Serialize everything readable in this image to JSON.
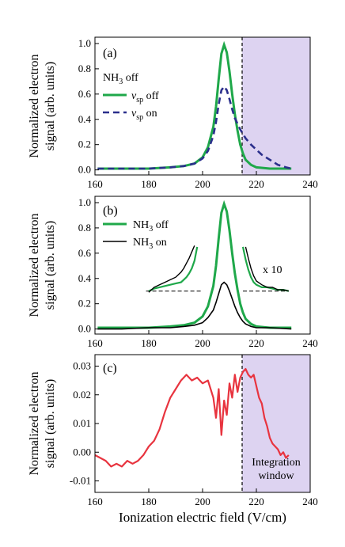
{
  "figure": {
    "xlabel": "Ionization electric field (V/cm)"
  },
  "colors": {
    "green": "#1fa84a",
    "navy": "#2b2f8c",
    "black": "#000000",
    "red": "#e8343f",
    "window": "#ddd3f1"
  },
  "chart_data": [
    {
      "type": "line",
      "panel_label": "(a)",
      "ylabel": "Normalized electron signal (arb. units)",
      "xlim": [
        160,
        240
      ],
      "ylim": [
        -0.04,
        1.05
      ],
      "x_ticks": [
        160,
        180,
        200,
        220,
        240
      ],
      "y_ticks": [
        0.0,
        0.2,
        0.4,
        0.6,
        0.8,
        1.0
      ],
      "legend_title": "NH3 off",
      "legend_position": "left",
      "vline": 215,
      "shaded_window": [
        215,
        240
      ],
      "series": [
        {
          "name": "νsp off",
          "style": "solid",
          "x": [
            161,
            170,
            180,
            188,
            193,
            197,
            200,
            202,
            204,
            205,
            206,
            207,
            208,
            209,
            210,
            211,
            212,
            213,
            214,
            215,
            216,
            218,
            220,
            225,
            233
          ],
          "y": [
            0.01,
            0.01,
            0.01,
            0.02,
            0.03,
            0.05,
            0.1,
            0.18,
            0.34,
            0.5,
            0.72,
            0.92,
            0.99,
            0.93,
            0.78,
            0.6,
            0.44,
            0.31,
            0.2,
            0.13,
            0.08,
            0.04,
            0.02,
            0.01,
            0.01
          ]
        },
        {
          "name": "νsp on",
          "style": "dashed",
          "x": [
            161,
            170,
            180,
            188,
            193,
            197,
            200,
            202,
            204,
            205,
            206,
            207,
            208,
            209,
            210,
            211,
            212,
            214,
            216,
            218,
            220,
            222,
            225,
            228,
            231,
            233
          ],
          "y": [
            0.01,
            0.01,
            0.01,
            0.02,
            0.03,
            0.05,
            0.09,
            0.15,
            0.27,
            0.38,
            0.52,
            0.63,
            0.66,
            0.63,
            0.56,
            0.48,
            0.41,
            0.32,
            0.25,
            0.2,
            0.16,
            0.12,
            0.08,
            0.04,
            0.02,
            0.01
          ]
        }
      ]
    },
    {
      "type": "line",
      "panel_label": "(b)",
      "ylabel": "Normalized electron signal (arb. units)",
      "xlim": [
        160,
        240
      ],
      "ylim": [
        -0.04,
        1.05
      ],
      "x_ticks": [
        160,
        180,
        200,
        220,
        240
      ],
      "y_ticks": [
        0.0,
        0.2,
        0.4,
        0.6,
        0.8,
        1.0
      ],
      "legend_position": "top-left",
      "annotation": "x 10",
      "baseline_dash": {
        "y": 0.3,
        "x_segments": [
          [
            179,
            200
          ],
          [
            215,
            232
          ]
        ]
      },
      "series": [
        {
          "name": "NH3 off",
          "color_key": "green",
          "x": [
            161,
            170,
            180,
            188,
            193,
            197,
            200,
            202,
            204,
            205,
            206,
            207,
            208,
            209,
            210,
            211,
            212,
            213,
            214,
            215,
            216,
            218,
            220,
            225,
            233
          ],
          "y": [
            0.01,
            0.01,
            0.01,
            0.02,
            0.03,
            0.05,
            0.1,
            0.18,
            0.34,
            0.5,
            0.72,
            0.92,
            0.99,
            0.93,
            0.78,
            0.6,
            0.44,
            0.31,
            0.2,
            0.13,
            0.08,
            0.04,
            0.02,
            0.01,
            0.01
          ]
        },
        {
          "name": "NH3 on",
          "color_key": "black",
          "x": [
            161,
            170,
            180,
            188,
            193,
            197,
            200,
            202,
            204,
            205,
            206,
            207,
            208,
            209,
            210,
            211,
            212,
            213,
            214,
            215,
            216,
            218,
            220,
            225,
            233
          ],
          "y": [
            0.0,
            0.0,
            0.01,
            0.01,
            0.02,
            0.03,
            0.05,
            0.09,
            0.15,
            0.21,
            0.28,
            0.35,
            0.37,
            0.35,
            0.3,
            0.24,
            0.18,
            0.13,
            0.09,
            0.06,
            0.04,
            0.02,
            0.01,
            0.01,
            0.0
          ]
        },
        {
          "name": "NH3 off x10 left",
          "color_key": "green",
          "x": [
            180,
            182,
            184,
            186,
            188,
            190,
            192,
            193,
            194,
            195,
            196,
            197,
            198
          ],
          "y": [
            0.3,
            0.32,
            0.33,
            0.34,
            0.35,
            0.36,
            0.37,
            0.39,
            0.41,
            0.44,
            0.48,
            0.54,
            0.65
          ]
        },
        {
          "name": "NH3 on x10 left",
          "color_key": "black",
          "x": [
            180,
            182,
            184,
            186,
            188,
            190,
            191,
            192,
            193,
            194,
            195,
            196,
            197
          ],
          "y": [
            0.29,
            0.33,
            0.35,
            0.37,
            0.39,
            0.41,
            0.43,
            0.45,
            0.48,
            0.52,
            0.56,
            0.61,
            0.66
          ]
        },
        {
          "name": "NH3 off x10 right",
          "color_key": "green",
          "x": [
            215,
            216,
            217,
            218,
            219,
            220,
            222,
            224,
            226,
            228,
            230,
            232
          ],
          "y": [
            0.65,
            0.55,
            0.47,
            0.41,
            0.37,
            0.35,
            0.33,
            0.33,
            0.32,
            0.31,
            0.31,
            0.3
          ]
        },
        {
          "name": "NH3 on x10 right",
          "color_key": "black",
          "x": [
            216,
            217,
            218,
            219,
            220,
            222,
            224,
            226,
            228,
            230,
            232
          ],
          "y": [
            0.65,
            0.56,
            0.48,
            0.42,
            0.38,
            0.35,
            0.33,
            0.33,
            0.31,
            0.31,
            0.3
          ]
        }
      ]
    },
    {
      "type": "line",
      "panel_label": "(c)",
      "ylabel": "Normalized electron signal (arb. units)",
      "xlim": [
        160,
        240
      ],
      "ylim": [
        -0.014,
        0.034
      ],
      "x_ticks": [
        160,
        180,
        200,
        220,
        240
      ],
      "y_ticks": [
        -0.01,
        0.0,
        0.01,
        0.02,
        0.03
      ],
      "vline": 215,
      "shaded_window": [
        215,
        240
      ],
      "window_label": [
        "Integration",
        "window"
      ],
      "series": [
        {
          "name": "difference",
          "color_key": "red",
          "x": [
            160,
            162,
            164,
            166,
            168,
            170,
            172,
            174,
            176,
            178,
            180,
            182,
            184,
            186,
            188,
            190,
            192,
            194,
            196,
            198,
            200,
            202,
            203,
            204,
            205,
            206,
            207,
            208,
            209,
            210,
            211,
            212,
            213,
            214,
            215,
            216,
            217,
            218,
            219,
            220,
            221,
            222,
            223,
            224,
            225,
            226,
            227,
            228,
            229,
            230,
            231,
            232
          ],
          "y": [
            -0.001,
            -0.002,
            -0.003,
            -0.005,
            -0.004,
            -0.005,
            -0.003,
            -0.004,
            -0.003,
            -0.001,
            0.002,
            0.004,
            0.008,
            0.014,
            0.019,
            0.022,
            0.025,
            0.027,
            0.025,
            0.026,
            0.024,
            0.025,
            0.022,
            0.019,
            0.012,
            0.022,
            0.006,
            0.018,
            0.013,
            0.024,
            0.019,
            0.027,
            0.021,
            0.026,
            0.028,
            0.029,
            0.027,
            0.026,
            0.027,
            0.023,
            0.019,
            0.017,
            0.012,
            0.009,
            0.005,
            0.003,
            0.002,
            0.001,
            -0.001,
            0.0,
            -0.002,
            -0.001
          ]
        }
      ]
    }
  ]
}
